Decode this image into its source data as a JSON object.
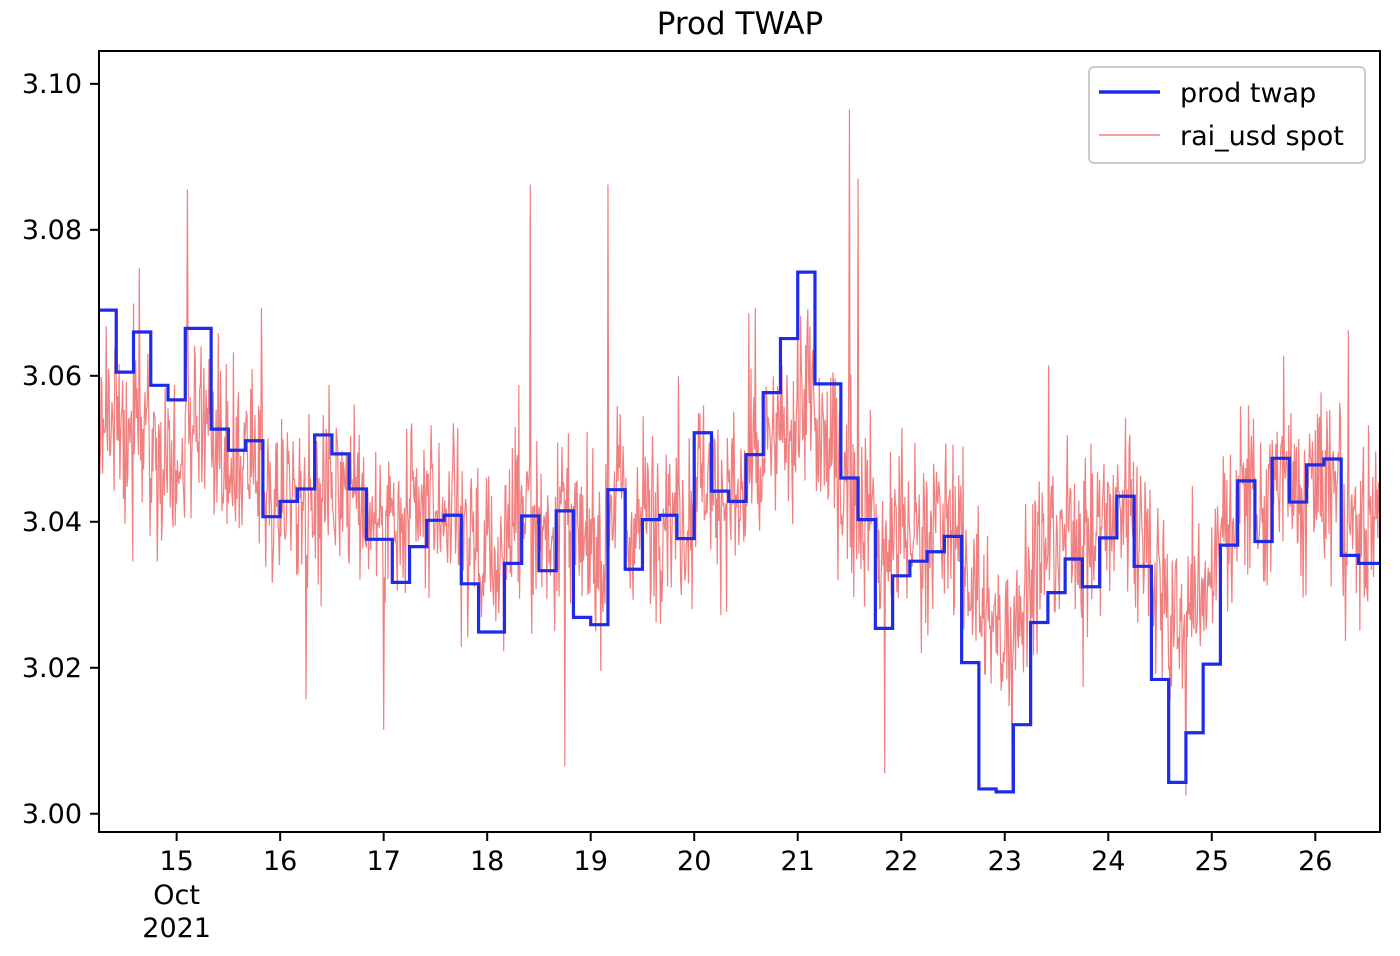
{
  "chart_data": {
    "type": "line",
    "title": "Prod TWAP",
    "xlabel": "",
    "ylabel": "",
    "x_axis": {
      "unit": "date",
      "range": [
        "2021-10-14 06:00",
        "2021-10-26 15:00"
      ],
      "tick_values": [
        "2021-10-15",
        "2021-10-16",
        "2021-10-17",
        "2021-10-18",
        "2021-10-19",
        "2021-10-20",
        "2021-10-21",
        "2021-10-22",
        "2021-10-23",
        "2021-10-24",
        "2021-10-25",
        "2021-10-26"
      ],
      "tick_labels": [
        "15",
        "16",
        "17",
        "18",
        "19",
        "20",
        "21",
        "22",
        "23",
        "24",
        "25",
        "26"
      ],
      "secondary_label": [
        "Oct",
        "2021"
      ]
    },
    "y_axis": {
      "range": [
        2.9975,
        3.1045
      ],
      "ticks": [
        3.0,
        3.02,
        3.04,
        3.06,
        3.08,
        3.1
      ],
      "tick_labels": [
        "3.00",
        "3.02",
        "3.04",
        "3.06",
        "3.08",
        "3.10"
      ]
    },
    "grid": false,
    "legend": {
      "placement": "top-right"
    },
    "series": [
      {
        "name": "prod twap",
        "style": "step",
        "color": "#1f2be8",
        "x": [
          "2021-10-14 06:00",
          "2021-10-14 10:00",
          "2021-10-14 14:00",
          "2021-10-14 18:00",
          "2021-10-14 22:00",
          "2021-10-15 02:00",
          "2021-10-15 08:00",
          "2021-10-15 12:00",
          "2021-10-15 16:00",
          "2021-10-15 20:00",
          "2021-10-16 00:00",
          "2021-10-16 04:00",
          "2021-10-16 08:00",
          "2021-10-16 12:00",
          "2021-10-16 16:00",
          "2021-10-16 20:00",
          "2021-10-17 02:00",
          "2021-10-17 06:00",
          "2021-10-17 10:00",
          "2021-10-17 14:00",
          "2021-10-17 18:00",
          "2021-10-17 22:00",
          "2021-10-18 04:00",
          "2021-10-18 08:00",
          "2021-10-18 12:00",
          "2021-10-18 16:00",
          "2021-10-18 20:00",
          "2021-10-19 00:00",
          "2021-10-19 04:00",
          "2021-10-19 08:00",
          "2021-10-19 12:00",
          "2021-10-19 16:00",
          "2021-10-19 20:00",
          "2021-10-20 00:00",
          "2021-10-20 04:00",
          "2021-10-20 08:00",
          "2021-10-20 12:00",
          "2021-10-20 16:00",
          "2021-10-20 20:00",
          "2021-10-21 00:00",
          "2021-10-21 04:00",
          "2021-10-21 10:00",
          "2021-10-21 14:00",
          "2021-10-21 18:00",
          "2021-10-21 22:00",
          "2021-10-22 02:00",
          "2021-10-22 06:00",
          "2021-10-22 10:00",
          "2021-10-22 14:00",
          "2021-10-22 18:00",
          "2021-10-22 22:00",
          "2021-10-23 02:00",
          "2021-10-23 06:00",
          "2021-10-23 10:00",
          "2021-10-23 14:00",
          "2021-10-23 18:00",
          "2021-10-23 22:00",
          "2021-10-24 02:00",
          "2021-10-24 06:00",
          "2021-10-24 10:00",
          "2021-10-24 14:00",
          "2021-10-24 18:00",
          "2021-10-24 22:00",
          "2021-10-25 02:00",
          "2021-10-25 06:00",
          "2021-10-25 10:00",
          "2021-10-25 14:00",
          "2021-10-25 18:00",
          "2021-10-25 22:00",
          "2021-10-26 02:00",
          "2021-10-26 06:00",
          "2021-10-26 10:00",
          "2021-10-26 14:00"
        ],
        "y": [
          3.069,
          3.0605,
          3.066,
          3.0587,
          3.0567,
          3.0665,
          3.0527,
          3.0498,
          3.0511,
          3.0407,
          3.0428,
          3.0445,
          3.0519,
          3.0493,
          3.0445,
          3.0376,
          3.0317,
          3.0366,
          3.0402,
          3.0409,
          3.0315,
          3.0249,
          3.0343,
          3.0408,
          3.0333,
          3.0415,
          3.0269,
          3.0259,
          3.0444,
          3.0335,
          3.0403,
          3.0409,
          3.0377,
          3.0522,
          3.0442,
          3.0428,
          3.0492,
          3.0577,
          3.0651,
          3.0742,
          3.0589,
          3.046,
          3.0403,
          3.0254,
          3.0326,
          3.0346,
          3.0359,
          3.038,
          3.0207,
          3.0034,
          3.003,
          3.0122,
          3.0262,
          3.0303,
          3.0349,
          3.0311,
          3.0378,
          3.0435,
          3.0339,
          3.0184,
          3.0043,
          3.0111,
          3.0205,
          3.0368,
          3.0456,
          3.0373,
          3.0487,
          3.0427,
          3.0478,
          3.0486,
          3.0354,
          3.0343,
          3.0343
        ]
      },
      {
        "name": "rai_usd spot",
        "style": "line",
        "color": "#f08080",
        "x_range": [
          "2021-10-14 06:00",
          "2021-10-26 15:00"
        ],
        "sampling": "10min",
        "baseline": 3.043,
        "band": [
          3.0,
          3.097
        ],
        "extremes": [
          {
            "x": "2021-10-21 12:00",
            "y": 3.0965
          },
          {
            "x": "2021-10-15 02:30",
            "y": 3.0855
          },
          {
            "x": "2021-10-18 10:00",
            "y": 3.0862
          },
          {
            "x": "2021-10-19 04:00",
            "y": 3.0862
          },
          {
            "x": "2021-10-21 14:00",
            "y": 3.087
          },
          {
            "x": "2021-10-17 00:00",
            "y": 3.0115
          },
          {
            "x": "2021-10-18 18:00",
            "y": 3.0065
          },
          {
            "x": "2021-10-24 18:00",
            "y": 3.0025
          }
        ]
      }
    ]
  }
}
